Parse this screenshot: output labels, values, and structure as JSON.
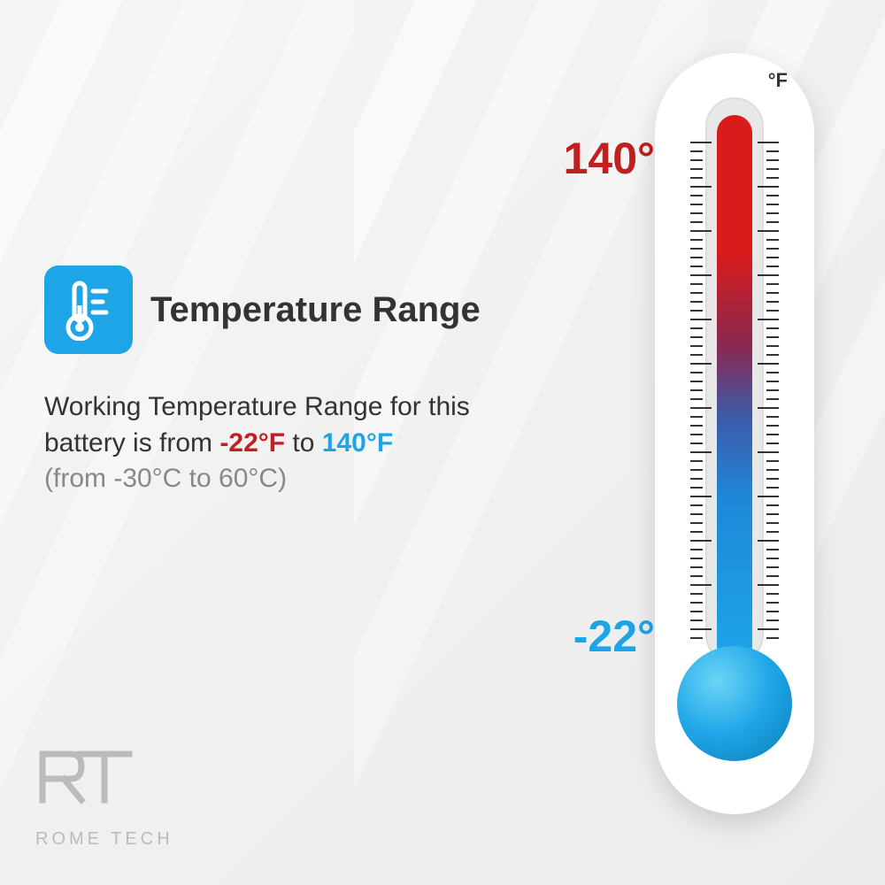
{
  "header": {
    "title": "Temperature Range",
    "icon": "thermometer-icon",
    "icon_bg": "#1ea5e8"
  },
  "description": {
    "prefix": "Working Temperature Range for this battery is from ",
    "low_f": "-22°F",
    "mid": " to ",
    "high_f": "140°F",
    "celsius": "(from -30°C to 60°C)"
  },
  "thermometer": {
    "unit": "°F",
    "high_label": "140°",
    "low_label": "-22°",
    "high_color": "#c02020",
    "low_color": "#1ea5e8",
    "gradient_top": "#d81b1b",
    "gradient_bottom": "#1ea5e8",
    "bulb_color": "#1ea5e8",
    "body_color": "#ffffff",
    "tick_count": 56,
    "major_every": 5
  },
  "logo": {
    "mark": "RT",
    "text": "ROME TECH"
  },
  "colors": {
    "red": "#c02020",
    "blue": "#1ea5e8",
    "text": "#333333",
    "muted": "#888888",
    "logo": "#bbbbbb",
    "bg_light": "#f5f5f5"
  }
}
